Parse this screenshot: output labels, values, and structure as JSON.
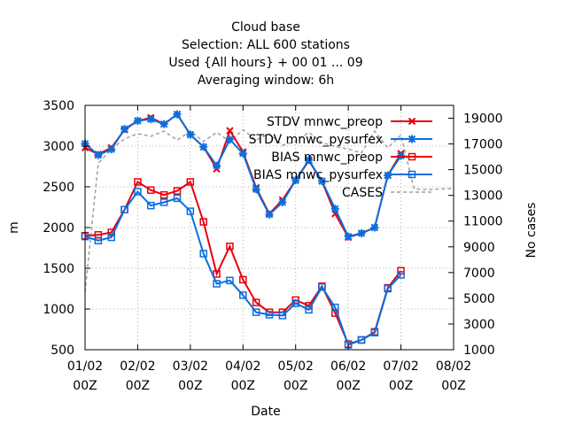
{
  "chart_data": {
    "type": "line",
    "title_lines": [
      "Cloud base",
      "Selection: ALL    600 stations",
      "Used {All hours} + 00 01 ... 09",
      "Averaging window:  6h"
    ],
    "xlabel": "Date",
    "ylabel": "m",
    "y2label": "No cases",
    "x_ticks": [
      {
        "x": 0,
        "line1": "01/02",
        "line2": "00Z"
      },
      {
        "x": 1,
        "line1": "02/02",
        "line2": "00Z"
      },
      {
        "x": 2,
        "line1": "03/02",
        "line2": "00Z"
      },
      {
        "x": 3,
        "line1": "04/02",
        "line2": "00Z"
      },
      {
        "x": 4,
        "line1": "05/02",
        "line2": "00Z"
      },
      {
        "x": 5,
        "line1": "06/02",
        "line2": "00Z"
      },
      {
        "x": 6,
        "line1": "07/02",
        "line2": "00Z"
      },
      {
        "x": 7,
        "line1": "08/02",
        "line2": "00Z"
      }
    ],
    "xlim": [
      0,
      7
    ],
    "ylim": [
      500,
      3500
    ],
    "y_ticks": [
      500,
      1000,
      1500,
      2000,
      2500,
      3000,
      3500
    ],
    "y2lim": [
      1000,
      20000
    ],
    "y2_ticks": [
      1000,
      3000,
      5000,
      7000,
      9000,
      11000,
      13000,
      15000,
      17000,
      19000
    ],
    "grid": true,
    "legend_position": "top-right",
    "x": [
      0,
      0.25,
      0.5,
      0.75,
      1,
      1.25,
      1.5,
      1.75,
      2,
      2.25,
      2.5,
      2.75,
      3,
      3.25,
      3.5,
      3.75,
      4,
      4.25,
      4.5,
      4.75,
      5,
      5.25,
      5.5,
      5.75,
      6,
      6.25
    ],
    "series": [
      {
        "name": "STDV mnwc_preop",
        "axis": "y1",
        "color": "#e8000b",
        "marker": "x",
        "values": [
          2980,
          2900,
          2980,
          3200,
          3310,
          3350,
          3270,
          3390,
          3140,
          2990,
          2720,
          3190,
          2930,
          2490,
          2170,
          2340,
          2580,
          2820,
          2570,
          2170,
          1880,
          1930,
          2000,
          2640,
          2910,
          null
        ]
      },
      {
        "name": "STDV mnwc_pysurfex",
        "axis": "y1",
        "color": "#0a6ede",
        "marker": "star",
        "values": [
          3030,
          2890,
          2960,
          3210,
          3310,
          3330,
          3270,
          3390,
          3140,
          2990,
          2760,
          3080,
          2910,
          2470,
          2160,
          2310,
          2580,
          2830,
          2570,
          2230,
          1890,
          1930,
          2000,
          2640,
          2880,
          null
        ]
      },
      {
        "name": "BIAS mnwc_preop",
        "axis": "y1",
        "color": "#e8000b",
        "marker": "square",
        "values": [
          1900,
          1910,
          1940,
          2220,
          2560,
          2460,
          2400,
          2450,
          2560,
          2070,
          1430,
          1770,
          1360,
          1080,
          960,
          960,
          1110,
          1040,
          1280,
          950,
          570,
          620,
          720,
          1260,
          1470,
          null
        ]
      },
      {
        "name": "BIAS mnwc_pysurfex",
        "axis": "y1",
        "color": "#0a6ede",
        "marker": "square",
        "values": [
          1890,
          1840,
          1880,
          2220,
          2440,
          2270,
          2310,
          2360,
          2200,
          1680,
          1310,
          1350,
          1170,
          960,
          930,
          920,
          1070,
          990,
          1270,
          1020,
          560,
          620,
          710,
          1250,
          1420,
          null
        ]
      },
      {
        "name": "CASES",
        "axis": "y2",
        "color": "#a0a0a0",
        "dashed": true,
        "values": [
          5500,
          15500,
          16600,
          17400,
          17800,
          17600,
          18000,
          17300,
          18000,
          17200,
          17900,
          17200,
          18100,
          17300,
          17800,
          16900,
          17200,
          17900,
          17100,
          16800,
          16600,
          16300,
          18000,
          16700,
          17700,
          13500
        ],
        "extra": [
          [
            6.25,
            13500
          ],
          [
            6.5,
            13450
          ],
          [
            7,
            13550
          ]
        ]
      }
    ]
  }
}
